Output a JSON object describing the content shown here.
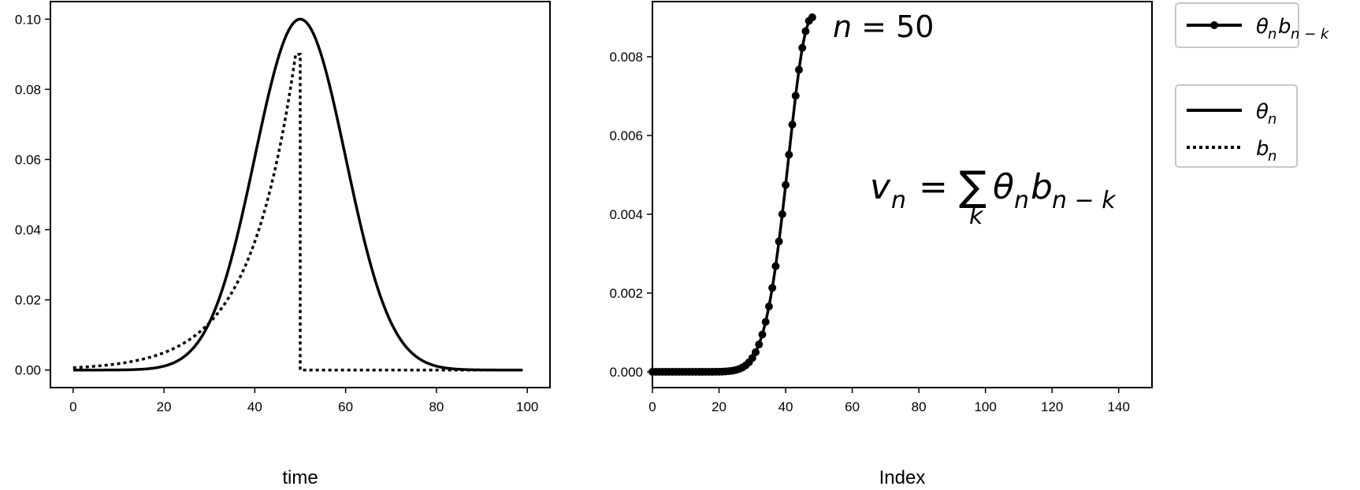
{
  "chart_data": [
    {
      "type": "line",
      "xlabel": "time",
      "ylabel": "",
      "xlim": [
        -5,
        105
      ],
      "ylim": [
        -0.005,
        0.105
      ],
      "x_ticks": [
        "0",
        "20",
        "40",
        "60",
        "80",
        "100"
      ],
      "x_tick_values": [
        0,
        20,
        40,
        60,
        80,
        100
      ],
      "y_ticks": [
        "0.00",
        "0.02",
        "0.04",
        "0.06",
        "0.08",
        "0.10"
      ],
      "y_tick_values": [
        0,
        0.02,
        0.04,
        0.06,
        0.08,
        0.1
      ],
      "series": [
        {
          "name": "θ_n",
          "style": "solid",
          "function": "gaussian",
          "mu": 50,
          "sigma": 10,
          "amplitude": 0.1,
          "x_start": 0,
          "x_end": 99
        },
        {
          "name": "b_n",
          "style": "dotted",
          "function": "exponential_then_zero",
          "amplitude": 0.09,
          "peak_x": 49,
          "rate": 0.1,
          "drop_x": 50,
          "x_start": 0,
          "x_end": 99
        }
      ],
      "legend": {
        "placement": "outside-right",
        "entries": [
          {
            "label": "θ",
            "sub": "n",
            "style": "solid"
          },
          {
            "label": "b",
            "sub": "n",
            "style": "dotted"
          }
        ]
      }
    },
    {
      "type": "line",
      "xlabel": "Index",
      "ylabel": "",
      "xlim": [
        0,
        150
      ],
      "ylim": [
        -0.0004,
        0.0094
      ],
      "x_ticks": [
        "0",
        "20",
        "40",
        "60",
        "80",
        "100",
        "120",
        "140"
      ],
      "x_tick_values": [
        0,
        20,
        40,
        60,
        80,
        100,
        120,
        140
      ],
      "y_ticks": [
        "0.000",
        "0.002",
        "0.004",
        "0.006",
        "0.008"
      ],
      "y_tick_values": [
        0,
        0.002,
        0.004,
        0.006,
        0.008
      ],
      "series": [
        {
          "name": "θ_n b_{n−k}",
          "style": "solid-markers",
          "function": "gaussian_times_exponential",
          "amplitude": 0.009,
          "mu": 48,
          "sigma": 7.07,
          "x_start": 0,
          "x_end": 48
        }
      ],
      "annotations": [
        {
          "text": "n = 50",
          "near": "end of series"
        },
        {
          "text": "v_n = Σ_k θ_n b_{n−k}",
          "position": "center-right"
        }
      ],
      "legend": {
        "placement": "outside-right-top",
        "entries": [
          {
            "label": "θ",
            "sub": "n",
            "label2": "b",
            "sub2": "n − k",
            "style": "solid-markers"
          }
        ]
      }
    }
  ],
  "annotation_text": {
    "n_label": "n",
    "n_eq": " = 50",
    "v": "v",
    "v_sub": "n",
    "equals": "=",
    "sum": "∑",
    "sum_sub": "k",
    "theta": "θ",
    "theta_sub": "n",
    "b": "b",
    "b_sub": "n − k"
  }
}
